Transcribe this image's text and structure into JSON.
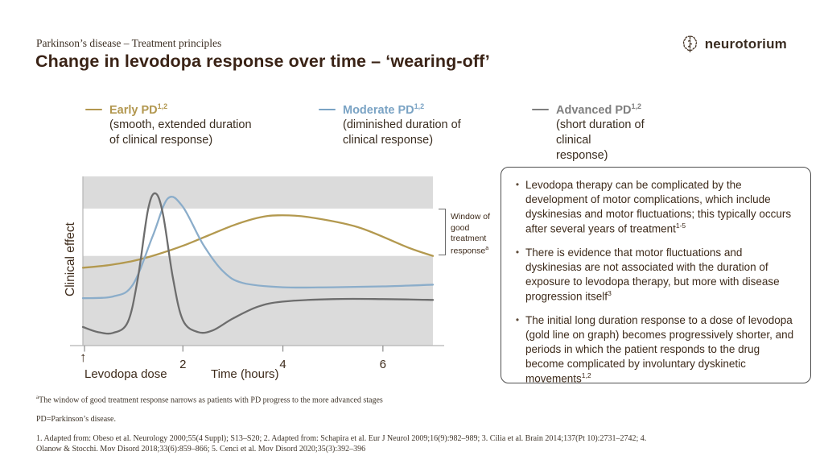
{
  "header": {
    "eyebrow": "Parkinson’s disease – Treatment principles",
    "title": "Change in levodopa response over time – ‘wearing-off’",
    "logo_text": "neurotorium"
  },
  "legend": {
    "items": [
      {
        "label": "Early PD",
        "sup": "1,2",
        "desc": "(smooth, extended duration of clinical response)",
        "color": "#b2974f"
      },
      {
        "label": "Moderate PD",
        "sup": "1,2",
        "desc": "(diminished duration of clinical response)",
        "color": "#7aa3c4"
      },
      {
        "label": "Advanced PD",
        "sup": "1,2",
        "desc": "(short duration of clinical response)",
        "color": "#7f7f7f"
      }
    ]
  },
  "chart_data": {
    "type": "line",
    "title": "",
    "xlabel": "Time (hours)",
    "ylabel": "Clinical effect",
    "x_range": [
      0,
      7
    ],
    "x_ticks": [
      2,
      4,
      6
    ],
    "y_scale": "relative clinical effect 0–100 (axis unlabeled)",
    "grid": false,
    "dose_marker_label": "Levodopa dose",
    "window_band": {
      "label": "Window of good treatment response",
      "sup": "a",
      "range": [
        53,
        81
      ]
    },
    "band_gray": "#dbdbdb",
    "series": [
      {
        "name": "Early PD (smooth, extended duration of clinical response)",
        "color": "#b3994f",
        "x": [
          0,
          0.5,
          1,
          1.5,
          2,
          2.5,
          3,
          3.5,
          3.9,
          4.5,
          5.5,
          6.5,
          7
        ],
        "y": [
          46,
          47.5,
          50,
          54,
          59,
          65,
          71,
          75.5,
          77,
          76,
          70,
          58,
          53
        ]
      },
      {
        "name": "Moderate PD (diminished duration of clinical response)",
        "color": "#8badca",
        "x": [
          0,
          0.6,
          1.0,
          1.4,
          1.7,
          2.0,
          2.4,
          2.8,
          3.2,
          4,
          5,
          6,
          7
        ],
        "y": [
          28,
          29,
          36,
          65,
          87,
          82,
          60,
          44,
          37,
          34.5,
          34.5,
          35,
          36
        ]
      },
      {
        "name": "Advanced PD (short duration of clinical response)",
        "color": "#6d6d6d",
        "x": [
          0,
          0.3,
          0.6,
          0.9,
          1.1,
          1.3,
          1.45,
          1.6,
          1.8,
          2.0,
          2.3,
          2.6,
          3.0,
          3.5,
          4,
          5,
          6,
          7
        ],
        "y": [
          11,
          8,
          7.5,
          14,
          40,
          80,
          90,
          78,
          40,
          15,
          8,
          9,
          16,
          23,
          26,
          27.5,
          27.5,
          27
        ]
      }
    ]
  },
  "info_box": {
    "bullets": [
      {
        "text": "Levodopa therapy can be complicated by the development of motor complications, which include dyskinesias and motor fluctuations; this typically occurs after several years of treatment",
        "sup": "1-5"
      },
      {
        "text": "There is evidence that motor fluctuations and dyskinesias are not associated with the duration of exposure to levodopa therapy, but more with disease progression itself",
        "sup": "3"
      },
      {
        "text": "The initial long duration response to a dose of levodopa (gold line on graph) becomes progressively shorter, and periods in which the patient responds to the drug become complicated by involuntary dyskinetic movements",
        "sup": "1,2"
      }
    ]
  },
  "footnotes": {
    "note_a": {
      "sup": "a",
      "text": "The window of good treatment response narrows as patients with PD progress to the more advanced stages"
    },
    "abbreviation": "PD=Parkinson’s disease.",
    "references": "1. Adapted from: Obeso et al. Neurology 2000;55(4 Suppl); S13–S20; 2. Adapted from: Schapira et al. Eur J Neurol 2009;16(9):982–989; 3. Cilia et al. Brain 2014;137(Pt 10):2731–2742; 4. Olanow & Stocchi. Mov Disord 2018;33(6):859–866; 5. Cenci et al. Mov Disord 2020;35(3):392–396"
  }
}
